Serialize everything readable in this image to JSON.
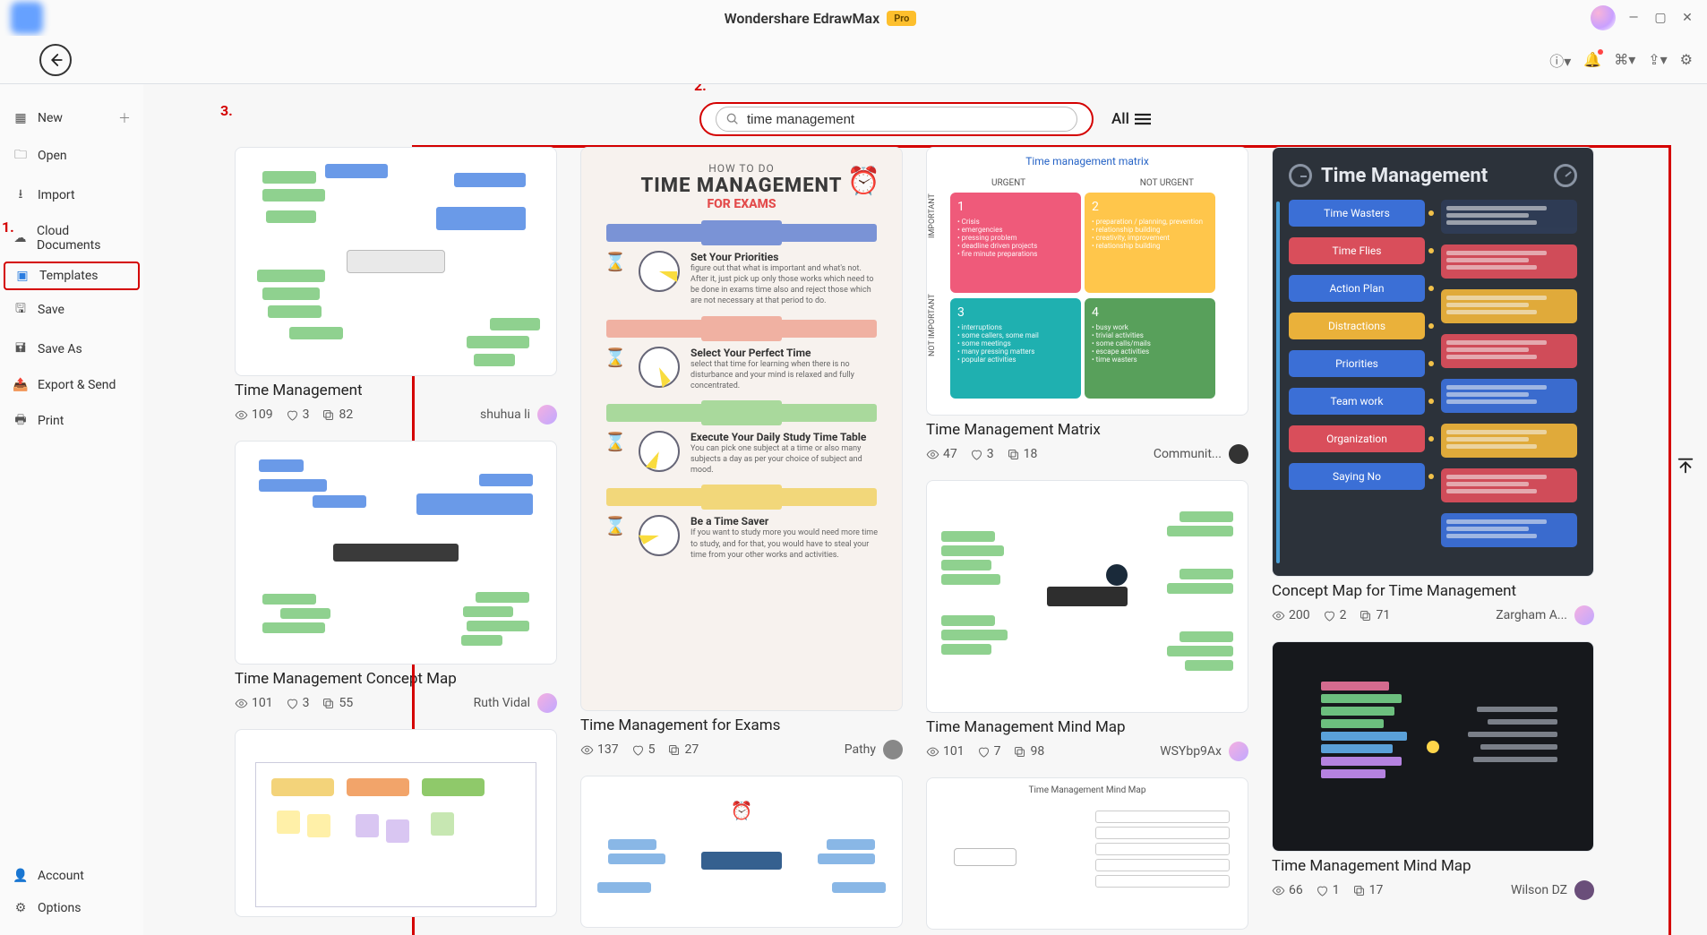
{
  "app": {
    "title": "Wondershare EdrawMax",
    "badge": "Pro"
  },
  "sidebar": {
    "items": [
      {
        "icon": "➕",
        "label": "New",
        "has_plus": true
      },
      {
        "icon": "📁",
        "label": "Open"
      },
      {
        "icon": "⇩",
        "label": "Import"
      },
      {
        "icon": "☁",
        "label": "Cloud Documents"
      },
      {
        "icon": "📋",
        "label": "Templates",
        "selected": true
      },
      {
        "icon": "💾",
        "label": "Save"
      },
      {
        "icon": "💾",
        "label": "Save As"
      },
      {
        "icon": "📤",
        "label": "Export & Send"
      },
      {
        "icon": "🖨",
        "label": "Print"
      }
    ],
    "bottom": [
      {
        "icon": "👤",
        "label": "Account"
      },
      {
        "icon": "⚙",
        "label": "Options"
      }
    ]
  },
  "search": {
    "value": "time management",
    "filter_label": "All"
  },
  "annotations": {
    "one": "1.",
    "two": "2.",
    "three": "3."
  },
  "cards": {
    "c1": {
      "title": "Time Management",
      "views": "109",
      "likes": "3",
      "copies": "82",
      "author": "shuhua li",
      "thumb_h": 256
    },
    "c2": {
      "title": "Time Management Concept Map",
      "views": "101",
      "likes": "3",
      "copies": "55",
      "author": "Ruth Vidal",
      "thumb_h": 250
    },
    "c3": {
      "title": "Time Management for Exams",
      "views": "137",
      "likes": "5",
      "copies": "27",
      "author": "Pathy",
      "thumb_h": 630,
      "infographic": {
        "heading1": "HOW TO DO",
        "heading2": "TIME MANAGEMENT",
        "heading3": "FOR EXAMS",
        "heading2_color": "#3a3a3a",
        "heading3_color": "#e34b4b",
        "steps": [
          {
            "bar": "#7a93d6",
            "title": "Set Your Priorities",
            "body": "figure out that what is important and what's not. After it, just pick up only those works which need to be done in exams time also and reject those which are not necessary at that period to do."
          },
          {
            "bar": "#f0b1a2",
            "title": "Select Your Perfect Time",
            "body": "select that time for learning when there is no disturbance and your mind is relaxed and fully concentrated."
          },
          {
            "bar": "#a9d99c",
            "title": "Execute Your Daily Study Time Table",
            "body": "You can pick one subject at a time or also many subjects a day as per your choice of subject and mood."
          },
          {
            "bar": "#f2d77a",
            "title": "Be a Time Saver",
            "body": "If you want to study more you would need more time to study, and for that, you would have to steal your time from your other works and activities."
          }
        ],
        "clock_yellow": "#f9dc3e"
      }
    },
    "c4": {
      "title": "Time Management Matrix",
      "views": "47",
      "likes": "3",
      "copies": "18",
      "author": "Communit...",
      "thumb_h": 300,
      "matrix": {
        "title": "Time management matrix",
        "col1": "URGENT",
        "col2": "NOT URGENT",
        "row1": "IMPORTANT",
        "row2": "NOT IMPORTANT",
        "q": [
          {
            "bg": "#ef5a7a",
            "num": "1",
            "lines": [
              "Crisis",
              "emergencies",
              "pressing problem",
              "deadline driven projects",
              "fire minute preparations"
            ]
          },
          {
            "bg": "#ffc64b",
            "num": "2",
            "lines": [
              "preparation / planning, prevention",
              "relationship building",
              "creativity, improvement",
              "relationship building"
            ]
          },
          {
            "bg": "#1fb0b0",
            "num": "3",
            "lines": [
              "interruptions",
              "some callers, some mail",
              "some meetings",
              "many pressing matters",
              "popular activities"
            ]
          },
          {
            "bg": "#58a05b",
            "num": "4",
            "lines": [
              "busy work",
              "trivial activities",
              "some calls/mails",
              "escape activities",
              "time wasters"
            ]
          }
        ]
      }
    },
    "c5": {
      "title": "Time Management Mind Map",
      "views": "101",
      "likes": "7",
      "copies": "98",
      "author": "WSYbp9Ax",
      "thumb_h": 260
    },
    "c6": {
      "title": "Concept Map for Time Management",
      "views": "200",
      "likes": "2",
      "copies": "71",
      "author": "Zargham A...",
      "thumb_h": 480,
      "dark": {
        "bg": "#2c323a",
        "title": "Time Management",
        "left_labels": [
          "Time Wasters",
          "Time Flies",
          "Action Plan",
          "Distractions",
          "Priorities",
          "Team work",
          "Organization",
          "Saying No"
        ],
        "left_colors": [
          "#3b6fd6",
          "#d94e5b",
          "#3b6fd6",
          "#eab13a",
          "#3b6fd6",
          "#3b6fd6",
          "#d94e5b",
          "#3b6fd6"
        ],
        "right_colors": [
          "#2f3d56",
          "#d94e5b",
          "#eab13a",
          "#d94e5b",
          "#3b6fd6",
          "#eab13a",
          "#d94e5b",
          "#3b6fd6"
        ]
      }
    },
    "c7": {
      "title": "Time Management Mind Map",
      "views": "66",
      "likes": "1",
      "copies": "17",
      "author": "Wilson DZ",
      "thumb_h": 235
    }
  }
}
